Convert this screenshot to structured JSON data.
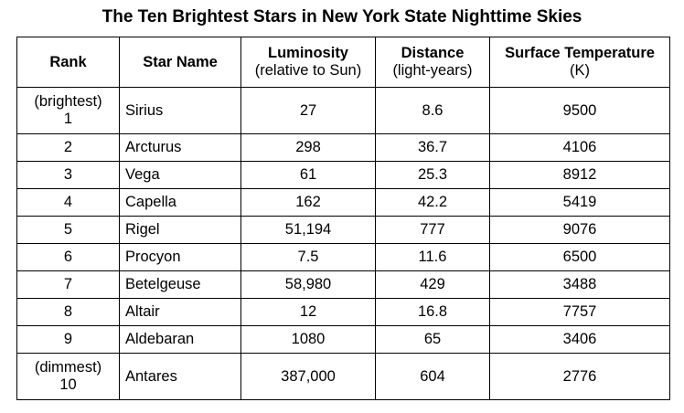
{
  "title": "The Ten Brightest Stars in New York State Nighttime Skies",
  "table": {
    "columns": [
      {
        "label": "Rank"
      },
      {
        "label": "Star Name"
      },
      {
        "label": "Luminosity",
        "sublabel": "(relative to Sun)"
      },
      {
        "label": "Distance",
        "sublabel": "(light-years)"
      },
      {
        "label": "Surface Temperature",
        "sublabel": "(K)"
      }
    ],
    "rows": [
      {
        "rank_note": "(brightest)",
        "rank": 1,
        "name": "Sirius",
        "luminosity": 27,
        "distance": 8.6,
        "temperature": 9500
      },
      {
        "rank": 2,
        "name": "Arcturus",
        "luminosity": 298,
        "distance": 36.7,
        "temperature": 4106
      },
      {
        "rank": 3,
        "name": "Vega",
        "luminosity": 61,
        "distance": 25.3,
        "temperature": 8912
      },
      {
        "rank": 4,
        "name": "Capella",
        "luminosity": 162,
        "distance": 42.2,
        "temperature": 5419
      },
      {
        "rank": 5,
        "name": "Rigel",
        "luminosity": "51,194",
        "distance": 777,
        "temperature": 9076
      },
      {
        "rank": 6,
        "name": "Procyon",
        "luminosity": 7.5,
        "distance": 11.6,
        "temperature": 6500
      },
      {
        "rank": 7,
        "name": "Betelgeuse",
        "luminosity": "58,980",
        "distance": 429,
        "temperature": 3488
      },
      {
        "rank": 8,
        "name": "Altair",
        "luminosity": 12,
        "distance": 16.8,
        "temperature": 7757
      },
      {
        "rank": 9,
        "name": "Aldebaran",
        "luminosity": 1080,
        "distance": 65,
        "temperature": 3406
      },
      {
        "rank_note": "(dimmest)",
        "rank": 10,
        "name": "Antares",
        "luminosity": "387,000",
        "distance": 604,
        "temperature": 2776
      }
    ]
  }
}
